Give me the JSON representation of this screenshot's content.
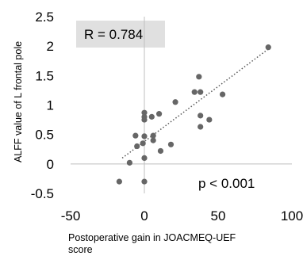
{
  "chart_data": {
    "type": "scatter",
    "title": "",
    "xlabel_lines": [
      "Postoperative gain in JOACMEQ-UEF",
      "score"
    ],
    "ylabel": "ALFF value of L frontal pole",
    "xlim": [
      -50,
      100
    ],
    "ylim": [
      -0.5,
      2.5
    ],
    "xticks": [
      -50,
      0,
      50,
      100
    ],
    "yticks": [
      -0.5,
      0,
      0.5,
      1,
      1.5,
      2,
      2.5
    ],
    "xtick_labels": [
      "-50",
      "0",
      "50",
      "100"
    ],
    "ytick_labels": [
      "-0.5",
      "0",
      "0.5",
      "1",
      "1.5",
      "2",
      "2.5"
    ],
    "grid": false,
    "point_color": "#666666",
    "trendline": {
      "style": "dotted",
      "color": "#595959",
      "x": [
        -15,
        84
      ],
      "y": [
        0.1,
        1.95
      ]
    },
    "points": [
      {
        "x": -17,
        "y": -0.3
      },
      {
        "x": -10,
        "y": 0.02
      },
      {
        "x": -6,
        "y": 0.48
      },
      {
        "x": -5,
        "y": 0.3
      },
      {
        "x": -1,
        "y": 0.35
      },
      {
        "x": 0,
        "y": 0.47
      },
      {
        "x": 0,
        "y": 0.75
      },
      {
        "x": 0,
        "y": 0.8
      },
      {
        "x": 0,
        "y": 0.87
      },
      {
        "x": 0,
        "y": 0.1
      },
      {
        "x": 0,
        "y": -0.3
      },
      {
        "x": 5,
        "y": 0.8
      },
      {
        "x": 6,
        "y": 0.48
      },
      {
        "x": 6,
        "y": 0.4
      },
      {
        "x": 10,
        "y": 0.85
      },
      {
        "x": 11,
        "y": 0.22
      },
      {
        "x": 18,
        "y": 0.33
      },
      {
        "x": 21,
        "y": 1.05
      },
      {
        "x": 34,
        "y": 1.22
      },
      {
        "x": 37,
        "y": 1.48
      },
      {
        "x": 38,
        "y": 1.22
      },
      {
        "x": 38,
        "y": 0.82
      },
      {
        "x": 38,
        "y": 0.63
      },
      {
        "x": 44,
        "y": 0.75
      },
      {
        "x": 53,
        "y": 1.18
      },
      {
        "x": 84,
        "y": 1.98
      }
    ],
    "annotations": {
      "r_label": "R = 0.784",
      "r_box_color": "#e0e0e0",
      "p_label": "p < 0.001"
    }
  }
}
